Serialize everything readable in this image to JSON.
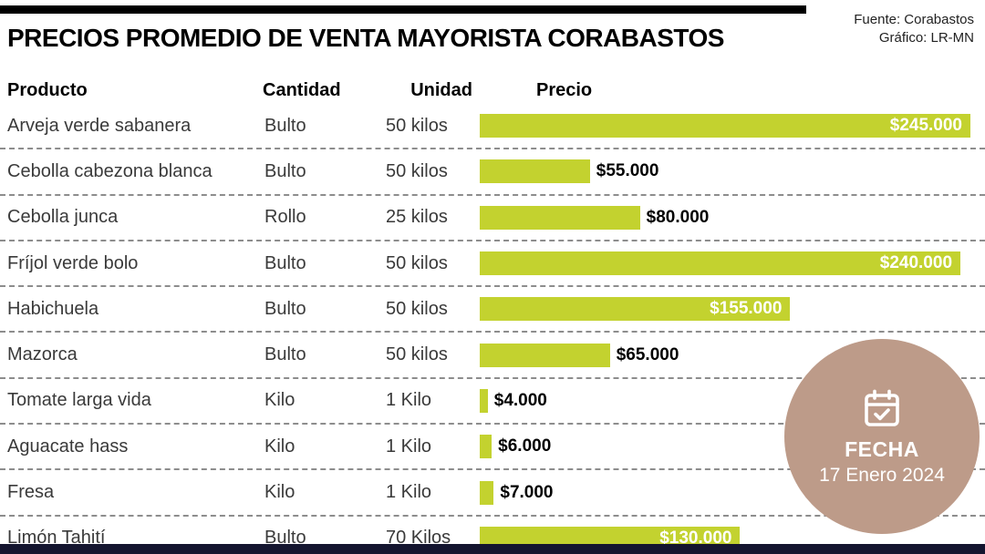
{
  "header": {
    "title": "PRECIOS PROMEDIO DE VENTA MAYORISTA CORABASTOS",
    "source_line1": "Fuente: Corabastos",
    "source_line2": "Gráfico: LR-MN"
  },
  "columns": {
    "producto": "Producto",
    "cantidad": "Cantidad",
    "unidad": "Unidad",
    "precio": "Precio"
  },
  "chart_data": {
    "type": "bar",
    "orientation": "horizontal",
    "title": "PRECIOS PROMEDIO DE VENTA MAYORISTA CORABASTOS",
    "value_axis_range": [
      0,
      245000
    ],
    "grid": false,
    "legend": "none",
    "bar_color": "#c3d22f",
    "max_value": 245000,
    "rows": [
      {
        "producto": "Arveja verde sabanera",
        "cantidad": "Bulto",
        "unidad": "50 kilos",
        "precio_label": "$245.000",
        "value": 245000,
        "label_inside": true
      },
      {
        "producto": "Cebolla cabezona blanca",
        "cantidad": "Bulto",
        "unidad": "50 kilos",
        "precio_label": "$55.000",
        "value": 55000,
        "label_inside": false
      },
      {
        "producto": "Cebolla junca",
        "cantidad": "Rollo",
        "unidad": "25 kilos",
        "precio_label": "$80.000",
        "value": 80000,
        "label_inside": false
      },
      {
        "producto": "Fríjol verde bolo",
        "cantidad": "Bulto",
        "unidad": "50 kilos",
        "precio_label": "$240.000",
        "value": 240000,
        "label_inside": true
      },
      {
        "producto": "Habichuela",
        "cantidad": "Bulto",
        "unidad": "50 kilos",
        "precio_label": "$155.000",
        "value": 155000,
        "label_inside": true
      },
      {
        "producto": "Mazorca",
        "cantidad": "Bulto",
        "unidad": "50 kilos",
        "precio_label": "$65.000",
        "value": 65000,
        "label_inside": false
      },
      {
        "producto": "Tomate larga vida",
        "cantidad": "Kilo",
        "unidad": "1 Kilo",
        "precio_label": "$4.000",
        "value": 4000,
        "label_inside": false
      },
      {
        "producto": "Aguacate hass",
        "cantidad": "Kilo",
        "unidad": "1 Kilo",
        "precio_label": "$6.000",
        "value": 6000,
        "label_inside": false
      },
      {
        "producto": "Fresa",
        "cantidad": "Kilo",
        "unidad": "1 Kilo",
        "precio_label": "$7.000",
        "value": 7000,
        "label_inside": false
      },
      {
        "producto": "Limón Tahití",
        "cantidad": "Bulto",
        "unidad": "70 Kilos",
        "precio_label": "$130.000",
        "value": 130000,
        "label_inside": true
      }
    ]
  },
  "badge": {
    "label": "FECHA",
    "date": "17 Enero 2024",
    "color": "#bd9b89",
    "icon": "calendar-check-icon"
  },
  "colors": {
    "bar": "#c3d22f",
    "badge": "#bd9b89",
    "bottom_bar": "#14152f"
  }
}
